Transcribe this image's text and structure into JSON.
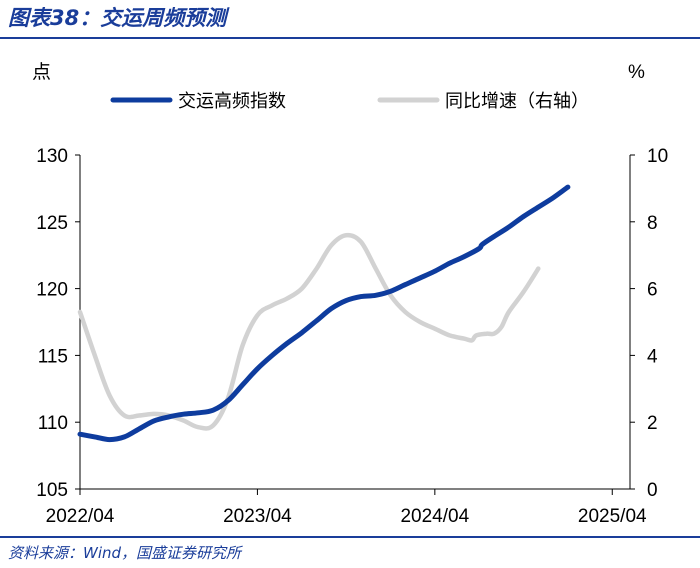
{
  "header": {
    "title": "图表38：交运周频预测"
  },
  "footer": {
    "source": "资料来源：Wind，国盛证券研究所"
  },
  "chart_data": {
    "type": "line",
    "ylabel_left": "点",
    "ylabel_right": "%",
    "ylim_left": [
      105,
      130
    ],
    "ylim_right": [
      0,
      10
    ],
    "yticks_left": [
      105,
      110,
      115,
      120,
      125,
      130
    ],
    "yticks_right": [
      0,
      2,
      4,
      6,
      8,
      10
    ],
    "xticks": [
      "2022/04",
      "2023/04",
      "2024/04",
      "2025/04"
    ],
    "xticks_t": [
      0,
      12,
      24,
      36
    ],
    "x_range": [
      0,
      37.2
    ],
    "legend_position": "top",
    "series": [
      {
        "name": "交运高频指数",
        "axis": "left",
        "color": "#0e3c9e",
        "points": [
          [
            0,
            109.1
          ],
          [
            1,
            108.9
          ],
          [
            2,
            108.7
          ],
          [
            3,
            108.9
          ],
          [
            4,
            109.5
          ],
          [
            5,
            110.1
          ],
          [
            6,
            110.4
          ],
          [
            7,
            110.6
          ],
          [
            8,
            110.7
          ],
          [
            9,
            110.9
          ],
          [
            10,
            111.6
          ],
          [
            11,
            112.8
          ],
          [
            12,
            114.0
          ],
          [
            13,
            115.0
          ],
          [
            14,
            115.9
          ],
          [
            15,
            116.7
          ],
          [
            16,
            117.6
          ],
          [
            17,
            118.5
          ],
          [
            18,
            119.1
          ],
          [
            19,
            119.4
          ],
          [
            20,
            119.5
          ],
          [
            21,
            119.8
          ],
          [
            22,
            120.3
          ],
          [
            23,
            120.8
          ],
          [
            24,
            121.3
          ],
          [
            25,
            121.9
          ],
          [
            26,
            122.4
          ],
          [
            27,
            123.0
          ],
          [
            27.2,
            123.3
          ],
          [
            28,
            123.9
          ],
          [
            29,
            124.6
          ],
          [
            30,
            125.4
          ],
          [
            31,
            126.1
          ],
          [
            32,
            126.8
          ],
          [
            33,
            127.6
          ]
        ]
      },
      {
        "name": "同比增速（右轴）",
        "axis": "right",
        "color": "#d2d2d2",
        "points": [
          [
            0,
            5.3
          ],
          [
            1,
            4.0
          ],
          [
            2,
            2.8
          ],
          [
            3,
            2.2
          ],
          [
            4,
            2.2
          ],
          [
            5,
            2.25
          ],
          [
            6,
            2.2
          ],
          [
            7,
            2.05
          ],
          [
            8,
            1.85
          ],
          [
            9,
            1.9
          ],
          [
            10,
            2.7
          ],
          [
            11,
            4.3
          ],
          [
            12,
            5.2
          ],
          [
            13,
            5.5
          ],
          [
            14,
            5.7
          ],
          [
            15,
            6.0
          ],
          [
            16,
            6.6
          ],
          [
            17,
            7.3
          ],
          [
            18,
            7.6
          ],
          [
            19,
            7.4
          ],
          [
            20,
            6.6
          ],
          [
            21,
            5.8
          ],
          [
            22,
            5.3
          ],
          [
            23,
            5.0
          ],
          [
            24,
            4.8
          ],
          [
            25,
            4.6
          ],
          [
            26,
            4.5
          ],
          [
            26.5,
            4.45
          ],
          [
            26.8,
            4.6
          ],
          [
            27.5,
            4.65
          ],
          [
            28,
            4.65
          ],
          [
            28.5,
            4.85
          ],
          [
            29,
            5.3
          ],
          [
            30,
            5.9
          ],
          [
            31,
            6.6
          ]
        ]
      }
    ]
  }
}
